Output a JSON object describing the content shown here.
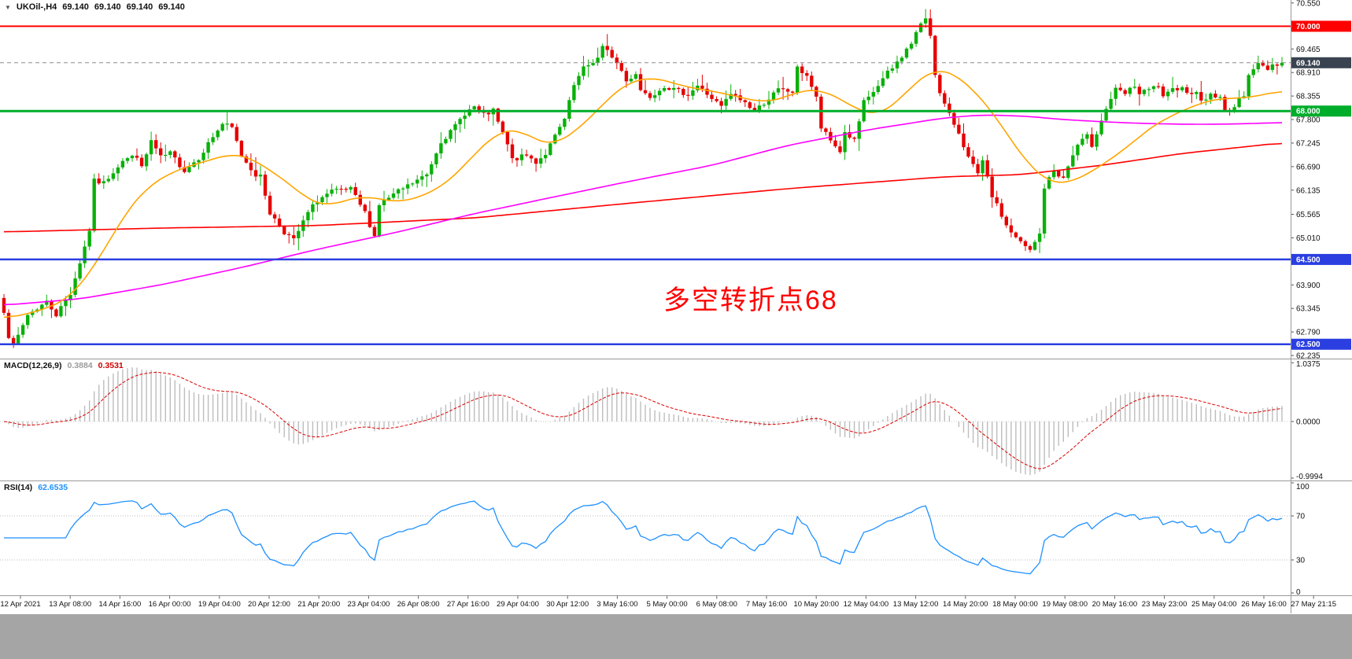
{
  "header": {
    "toggle_icon": "▼",
    "symbol_period": "UKOil-,H4",
    "open": "69.140",
    "high": "69.140",
    "low": "69.140",
    "close": "69.140"
  },
  "annotation": {
    "text": "多空转折点68",
    "color": "#FF0000"
  },
  "colors": {
    "background": "#FFFFFF",
    "candle_up": "#0AB00A",
    "candle_down": "#E60000",
    "ma_fast": "#FFA500",
    "ma_mid": "#FF00FF",
    "ma_slow": "#FF0000",
    "macd_histogram": "#BDBDBD",
    "macd_signal": "#DD0000",
    "rsi_line": "#1E90FF",
    "axis_text": "#111111",
    "separator": "#999999",
    "bottom_strip": "#A5A5A5",
    "current_price_badge": "#3A4450"
  },
  "price_axis": {
    "min": 62.18,
    "max": 70.62,
    "labels": [
      "70.550",
      "69.465",
      "68.910",
      "68.355",
      "67.800",
      "67.245",
      "66.690",
      "66.135",
      "65.565",
      "65.010",
      "63.900",
      "63.345",
      "62.790",
      "62.235"
    ]
  },
  "hlines": [
    {
      "price": 70.0,
      "label": "70.000",
      "color": "#FF0000",
      "width": 2
    },
    {
      "price": 68.0,
      "label": "68.000",
      "color": "#00AD2B",
      "width": 3
    },
    {
      "price": 64.5,
      "label": "64.500",
      "color": "#2B3FE0",
      "width": 2.5
    },
    {
      "price": 62.5,
      "label": "62.500",
      "color": "#2B3FE0",
      "width": 2.5
    }
  ],
  "current_price": {
    "value": 69.14,
    "label": "69.140"
  },
  "time_axis": {
    "labels": [
      "12 Apr 2021",
      "13 Apr 08:00",
      "14 Apr 16:00",
      "16 Apr 00:00",
      "19 Apr 04:00",
      "20 Apr 12:00",
      "21 Apr 20:00",
      "23 Apr 04:00",
      "26 Apr 08:00",
      "27 Apr 16:00",
      "29 Apr 04:00",
      "30 Apr 12:00",
      "3 May 16:00",
      "5 May 00:00",
      "6 May 08:00",
      "7 May 16:00",
      "10 May 20:00",
      "12 May 04:00",
      "13 May 12:00",
      "14 May 20:00",
      "18 May 00:00",
      "19 May 08:00",
      "20 May 16:00",
      "23 May 23:00",
      "25 May 04:00",
      "26 May 16:00",
      "27 May 21:15"
    ]
  },
  "chart_data": {
    "type": "candlestick",
    "title": "UKOil- H4",
    "num_candles": 270,
    "ohlc_latest": {
      "open": 69.14,
      "high": 69.14,
      "low": 69.14,
      "close": 69.14
    },
    "close_anchors": [
      [
        0,
        63.3
      ],
      [
        1,
        62.7
      ],
      [
        2,
        62.45
      ],
      [
        4,
        62.95
      ],
      [
        5,
        63.2
      ],
      [
        9,
        63.5
      ],
      [
        11,
        63.2
      ],
      [
        14,
        63.7
      ],
      [
        17,
        64.8
      ],
      [
        18,
        65.2
      ],
      [
        19,
        66.35
      ],
      [
        21,
        66.3
      ],
      [
        25,
        66.85
      ],
      [
        28,
        66.95
      ],
      [
        29,
        66.65
      ],
      [
        31,
        67.3
      ],
      [
        33,
        66.9
      ],
      [
        35,
        67.0
      ],
      [
        38,
        66.6
      ],
      [
        41,
        66.9
      ],
      [
        44,
        67.4
      ],
      [
        46,
        67.7
      ],
      [
        48,
        67.6
      ],
      [
        50,
        66.95
      ],
      [
        53,
        66.5
      ],
      [
        54,
        66.45
      ],
      [
        56,
        65.6
      ],
      [
        59,
        65.15
      ],
      [
        61,
        64.95
      ],
      [
        64,
        65.6
      ],
      [
        66,
        65.9
      ],
      [
        69,
        66.1
      ],
      [
        73,
        66.15
      ],
      [
        76,
        65.6
      ],
      [
        78,
        65.05
      ],
      [
        79,
        65.8
      ],
      [
        83,
        66.1
      ],
      [
        86,
        66.3
      ],
      [
        89,
        66.5
      ],
      [
        92,
        67.3
      ],
      [
        94,
        67.5
      ],
      [
        97,
        67.95
      ],
      [
        99,
        68.1
      ],
      [
        101,
        67.9
      ],
      [
        103,
        68.0
      ],
      [
        106,
        67.2
      ],
      [
        107,
        66.85
      ],
      [
        110,
        66.95
      ],
      [
        112,
        66.8
      ],
      [
        114,
        67.0
      ],
      [
        116,
        67.4
      ],
      [
        118,
        67.8
      ],
      [
        120,
        68.6
      ],
      [
        122,
        69.0
      ],
      [
        125,
        69.25
      ],
      [
        126,
        69.5
      ],
      [
        128,
        69.3
      ],
      [
        130,
        68.95
      ],
      [
        131,
        68.7
      ],
      [
        133,
        68.9
      ],
      [
        134,
        68.5
      ],
      [
        136,
        68.35
      ],
      [
        139,
        68.6
      ],
      [
        141,
        68.5
      ],
      [
        144,
        68.4
      ],
      [
        146,
        68.6
      ],
      [
        149,
        68.3
      ],
      [
        151,
        68.1
      ],
      [
        153,
        68.4
      ],
      [
        156,
        68.2
      ],
      [
        158,
        68.0
      ],
      [
        161,
        68.3
      ],
      [
        163,
        68.5
      ],
      [
        166,
        68.45
      ],
      [
        167,
        69.0
      ],
      [
        169,
        68.85
      ],
      [
        171,
        68.3
      ],
      [
        172,
        67.6
      ],
      [
        174,
        67.3
      ],
      [
        176,
        67.05
      ],
      [
        177,
        67.5
      ],
      [
        179,
        67.3
      ],
      [
        181,
        68.2
      ],
      [
        182,
        68.3
      ],
      [
        184,
        68.6
      ],
      [
        186,
        68.9
      ],
      [
        187,
        69.0
      ],
      [
        189,
        69.3
      ],
      [
        191,
        69.6
      ],
      [
        192,
        69.85
      ],
      [
        194,
        70.2
      ],
      [
        195,
        69.8
      ],
      [
        196,
        68.9
      ],
      [
        197,
        68.4
      ],
      [
        199,
        67.9
      ],
      [
        201,
        67.5
      ],
      [
        203,
        66.9
      ],
      [
        205,
        66.5
      ],
      [
        206,
        66.8
      ],
      [
        208,
        66.0
      ],
      [
        211,
        65.3
      ],
      [
        213,
        65.0
      ],
      [
        215,
        64.8
      ],
      [
        216,
        64.7
      ],
      [
        218,
        65.1
      ],
      [
        219,
        66.2
      ],
      [
        221,
        66.6
      ],
      [
        223,
        66.4
      ],
      [
        224,
        66.7
      ],
      [
        226,
        67.2
      ],
      [
        228,
        67.4
      ],
      [
        229,
        67.2
      ],
      [
        231,
        67.8
      ],
      [
        233,
        68.3
      ],
      [
        234,
        68.5
      ],
      [
        236,
        68.4
      ],
      [
        238,
        68.6
      ],
      [
        239,
        68.4
      ],
      [
        241,
        68.5
      ],
      [
        243,
        68.6
      ],
      [
        244,
        68.3
      ],
      [
        246,
        68.5
      ],
      [
        248,
        68.6
      ],
      [
        249,
        68.4
      ],
      [
        251,
        68.5
      ],
      [
        252,
        68.2
      ],
      [
        254,
        68.4
      ],
      [
        256,
        68.3
      ],
      [
        257,
        68.0
      ],
      [
        259,
        68.1
      ],
      [
        261,
        68.4
      ],
      [
        262,
        68.9
      ],
      [
        264,
        69.1
      ],
      [
        266,
        69.0
      ],
      [
        267,
        69.1
      ],
      [
        269,
        69.14
      ]
    ],
    "ma_fast_anchors": [
      [
        0,
        63.1
      ],
      [
        8,
        63.3
      ],
      [
        14,
        63.6
      ],
      [
        20,
        64.5
      ],
      [
        25,
        65.5
      ],
      [
        30,
        66.2
      ],
      [
        36,
        66.6
      ],
      [
        42,
        66.8
      ],
      [
        48,
        67.0
      ],
      [
        52,
        66.9
      ],
      [
        56,
        66.6
      ],
      [
        60,
        66.3
      ],
      [
        64,
        65.9
      ],
      [
        68,
        65.75
      ],
      [
        72,
        65.9
      ],
      [
        76,
        66.0
      ],
      [
        80,
        65.9
      ],
      [
        84,
        65.85
      ],
      [
        88,
        66.0
      ],
      [
        92,
        66.2
      ],
      [
        96,
        66.6
      ],
      [
        100,
        67.1
      ],
      [
        104,
        67.5
      ],
      [
        108,
        67.6
      ],
      [
        112,
        67.3
      ],
      [
        116,
        67.2
      ],
      [
        120,
        67.5
      ],
      [
        124,
        67.9
      ],
      [
        128,
        68.4
      ],
      [
        132,
        68.7
      ],
      [
        136,
        68.8
      ],
      [
        140,
        68.7
      ],
      [
        144,
        68.55
      ],
      [
        148,
        68.5
      ],
      [
        152,
        68.4
      ],
      [
        156,
        68.3
      ],
      [
        160,
        68.2
      ],
      [
        164,
        68.3
      ],
      [
        168,
        68.5
      ],
      [
        172,
        68.5
      ],
      [
        176,
        68.3
      ],
      [
        180,
        68.0
      ],
      [
        184,
        67.9
      ],
      [
        188,
        68.2
      ],
      [
        192,
        68.7
      ],
      [
        196,
        69.0
      ],
      [
        200,
        68.9
      ],
      [
        204,
        68.5
      ],
      [
        208,
        68.0
      ],
      [
        212,
        67.3
      ],
      [
        216,
        66.7
      ],
      [
        220,
        66.3
      ],
      [
        224,
        66.3
      ],
      [
        228,
        66.5
      ],
      [
        232,
        66.8
      ],
      [
        236,
        67.1
      ],
      [
        240,
        67.5
      ],
      [
        244,
        67.8
      ],
      [
        248,
        68.0
      ],
      [
        252,
        68.2
      ],
      [
        256,
        68.3
      ],
      [
        260,
        68.3
      ],
      [
        264,
        68.35
      ],
      [
        269,
        68.5
      ]
    ],
    "ma_mid_anchors": [
      [
        0,
        63.42
      ],
      [
        16,
        63.57
      ],
      [
        33,
        63.9
      ],
      [
        50,
        64.31
      ],
      [
        66,
        64.74
      ],
      [
        83,
        65.15
      ],
      [
        99,
        65.58
      ],
      [
        116,
        65.98
      ],
      [
        132,
        66.35
      ],
      [
        149,
        66.72
      ],
      [
        165,
        67.19
      ],
      [
        182,
        67.56
      ],
      [
        198,
        67.84
      ],
      [
        206,
        67.91
      ],
      [
        215,
        67.88
      ],
      [
        223,
        67.8
      ],
      [
        231,
        67.75
      ],
      [
        239,
        67.71
      ],
      [
        248,
        67.69
      ],
      [
        256,
        67.69
      ],
      [
        264,
        67.71
      ],
      [
        269,
        67.73
      ]
    ],
    "ma_slow_anchors": [
      [
        0,
        65.15
      ],
      [
        33,
        65.24
      ],
      [
        66,
        65.3
      ],
      [
        99,
        65.48
      ],
      [
        132,
        65.83
      ],
      [
        165,
        66.17
      ],
      [
        198,
        66.45
      ],
      [
        214,
        66.5
      ],
      [
        231,
        66.72
      ],
      [
        248,
        67.0
      ],
      [
        269,
        67.25
      ]
    ],
    "macd": {
      "name": "MACD(12,26,9)",
      "value_main": "0.3884",
      "value_signal": "0.3531",
      "params": [
        12,
        26,
        9
      ],
      "axis_labels": [
        "1.0375",
        "0.0000",
        "-0.9994"
      ]
    },
    "rsi": {
      "name": "RSI(14)",
      "value": "62.6535",
      "period": 14,
      "levels": [
        70,
        30
      ],
      "axis_labels": [
        "100",
        "70",
        "30",
        "0"
      ]
    }
  }
}
